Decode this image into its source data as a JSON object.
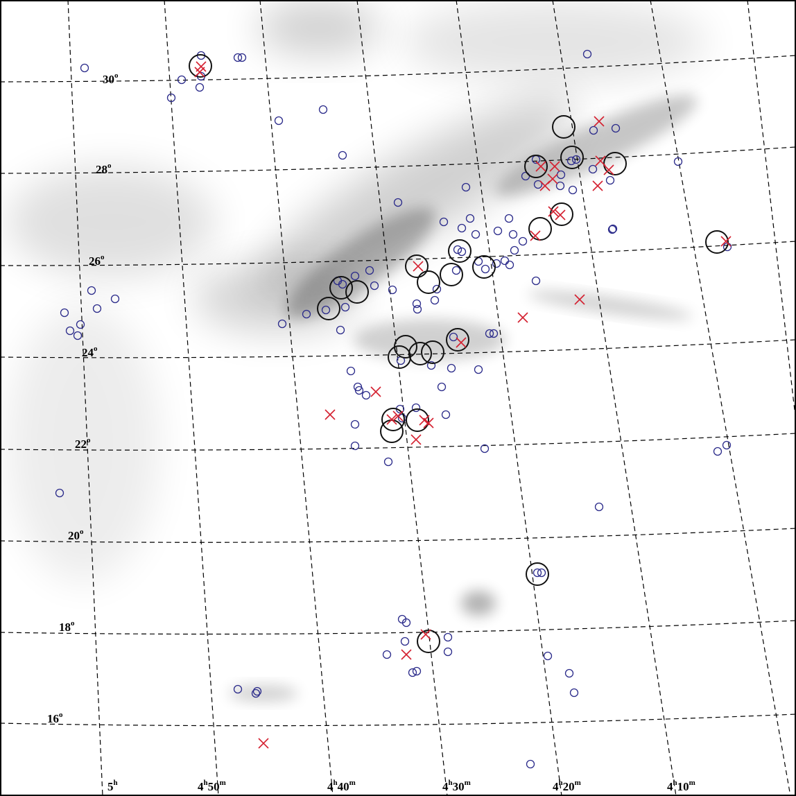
{
  "dec_labels": [
    {
      "deg": "30",
      "sup": "o"
    },
    {
      "deg": "28",
      "sup": "o"
    },
    {
      "deg": "26",
      "sup": "o"
    },
    {
      "deg": "24",
      "sup": "o"
    },
    {
      "deg": "22",
      "sup": "o"
    },
    {
      "deg": "20",
      "sup": "o"
    },
    {
      "deg": "18",
      "sup": "o"
    },
    {
      "deg": "16",
      "sup": "o"
    }
  ],
  "ra_labels": [
    {
      "hours": "5",
      "hours_unit": "h"
    },
    {
      "hours": "4",
      "hours_unit": "h",
      "minutes": "50",
      "minutes_unit": "m"
    },
    {
      "hours": "4",
      "hours_unit": "h",
      "minutes": "40",
      "minutes_unit": "m"
    },
    {
      "hours": "4",
      "hours_unit": "h",
      "minutes": "30",
      "minutes_unit": "m"
    },
    {
      "hours": "4",
      "hours_unit": "h",
      "minutes": "20",
      "minutes_unit": "m"
    },
    {
      "hours": "4",
      "hours_unit": "h",
      "minutes": "10",
      "minutes_unit": "m"
    }
  ]
}
